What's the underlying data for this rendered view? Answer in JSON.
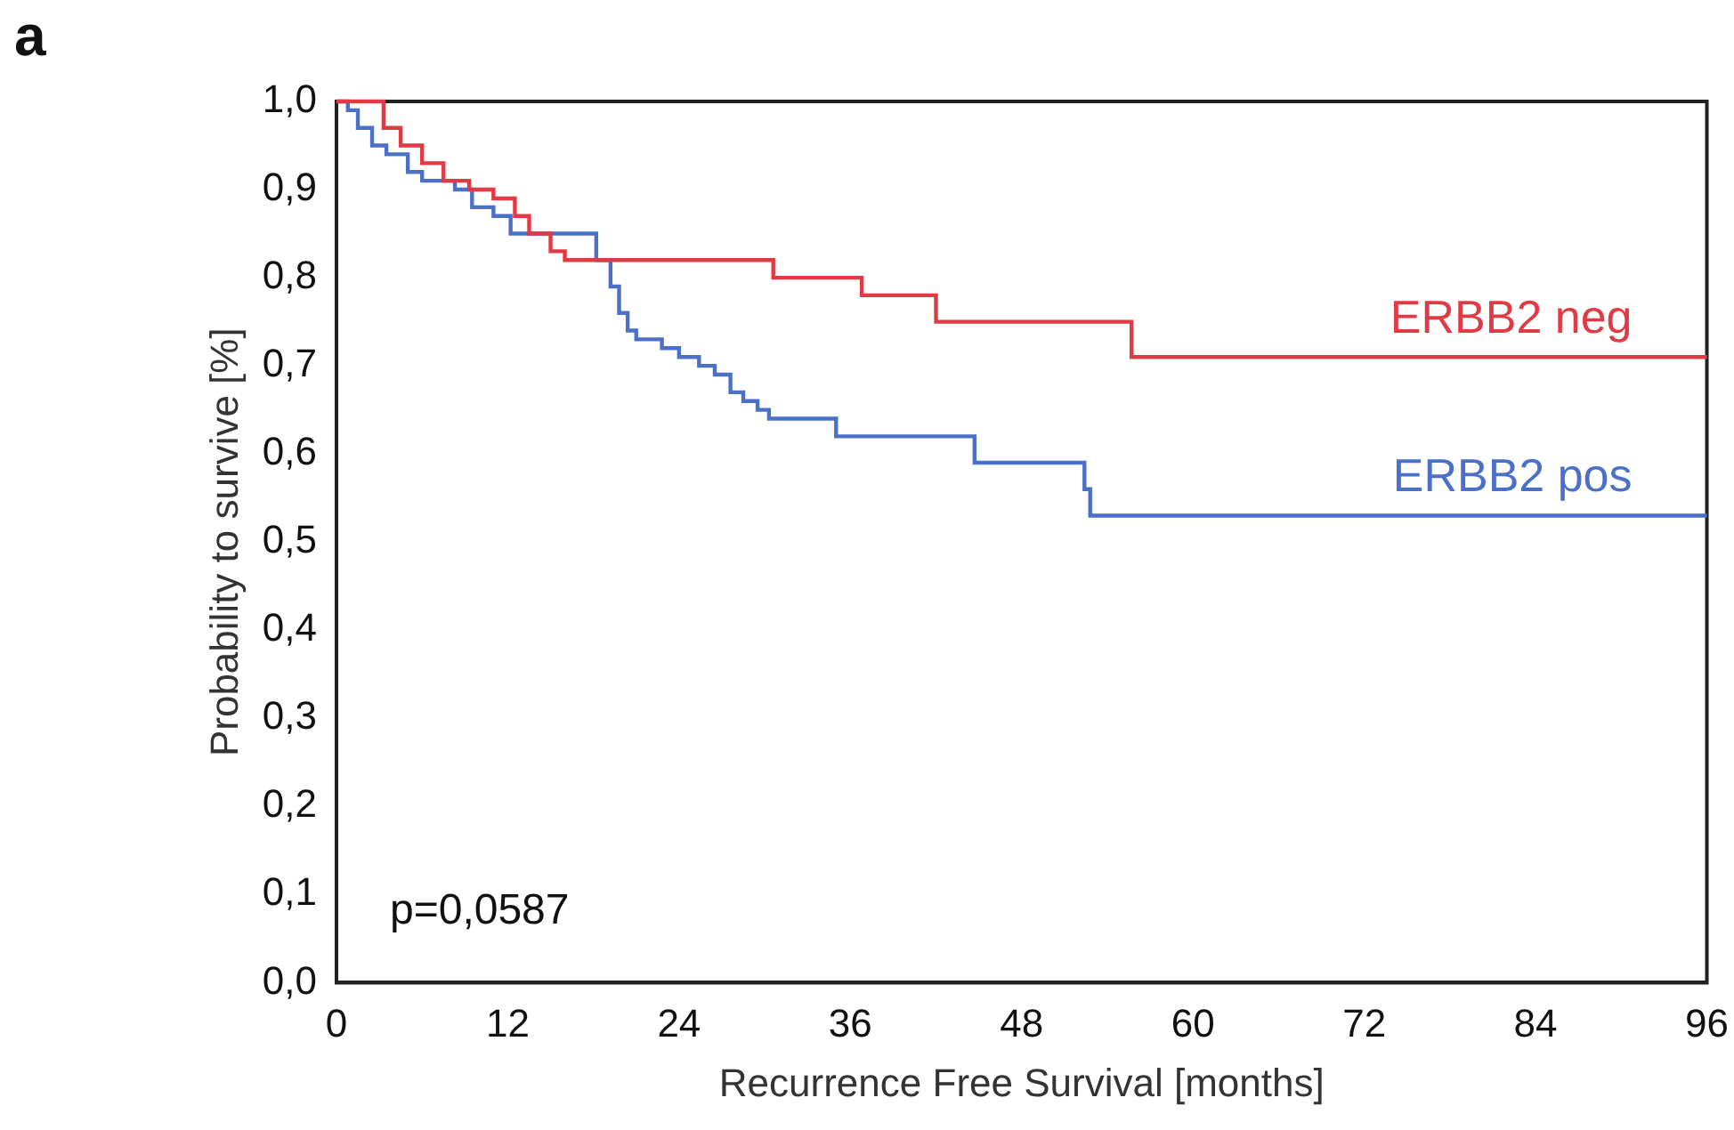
{
  "chart_data": {
    "type": "step",
    "xlabel": "Recurrence Free Survival [months]",
    "ylabel": "Probability to survive [%]",
    "annotations": [
      "a",
      "p=0,0587"
    ],
    "xlim": [
      0,
      96
    ],
    "xticks": [
      0,
      12,
      24,
      36,
      48,
      60,
      72,
      84,
      96
    ],
    "ylim": [
      0,
      1
    ],
    "yticks": [
      {
        "value": 0,
        "label": "0,0"
      },
      {
        "value": 0.1,
        "label": "0,1"
      },
      {
        "value": 0.2,
        "label": "0,2"
      },
      {
        "value": 0.3,
        "label": "0,3"
      },
      {
        "value": 0.4,
        "label": "0,4"
      },
      {
        "value": 0.5,
        "label": "0,5"
      },
      {
        "value": 0.6,
        "label": "0,6"
      },
      {
        "value": 0.7,
        "label": "0,7"
      },
      {
        "value": 0.8,
        "label": "0,8"
      },
      {
        "value": 0.9,
        "label": "0,9"
      },
      {
        "value": 1,
        "label": "1,0"
      }
    ],
    "grid": false,
    "legend": false,
    "series": [
      {
        "name": "ERBB2 neg",
        "color": "#e03a44",
        "x": [
          0,
          3.3,
          4.5,
          6,
          7.5,
          9.3,
          11,
          12.5,
          13.5,
          15,
          16,
          30.6,
          36.8,
          42,
          55.7,
          96
        ],
        "values": [
          1,
          0.97,
          0.95,
          0.93,
          0.91,
          0.9,
          0.89,
          0.87,
          0.85,
          0.83,
          0.82,
          0.8,
          0.78,
          0.75,
          0.71,
          0.71
        ]
      },
      {
        "name": "ERBB2 pos",
        "color": "#4a70c8",
        "x": [
          0,
          0.8,
          1.5,
          2.5,
          3.5,
          5,
          6,
          8.3,
          9.5,
          11,
          12.2,
          15,
          18.2,
          19.2,
          19.8,
          20.4,
          21,
          22.8,
          24,
          25.4,
          26.5,
          27.6,
          28.5,
          29.5,
          30.3,
          35,
          44.7,
          52.4,
          52.8,
          96
        ],
        "values": [
          1,
          0.99,
          0.97,
          0.95,
          0.94,
          0.92,
          0.91,
          0.9,
          0.88,
          0.87,
          0.85,
          0.85,
          0.82,
          0.79,
          0.76,
          0.74,
          0.73,
          0.72,
          0.71,
          0.7,
          0.69,
          0.67,
          0.66,
          0.65,
          0.64,
          0.62,
          0.59,
          0.56,
          0.53,
          0.53
        ]
      }
    ]
  }
}
